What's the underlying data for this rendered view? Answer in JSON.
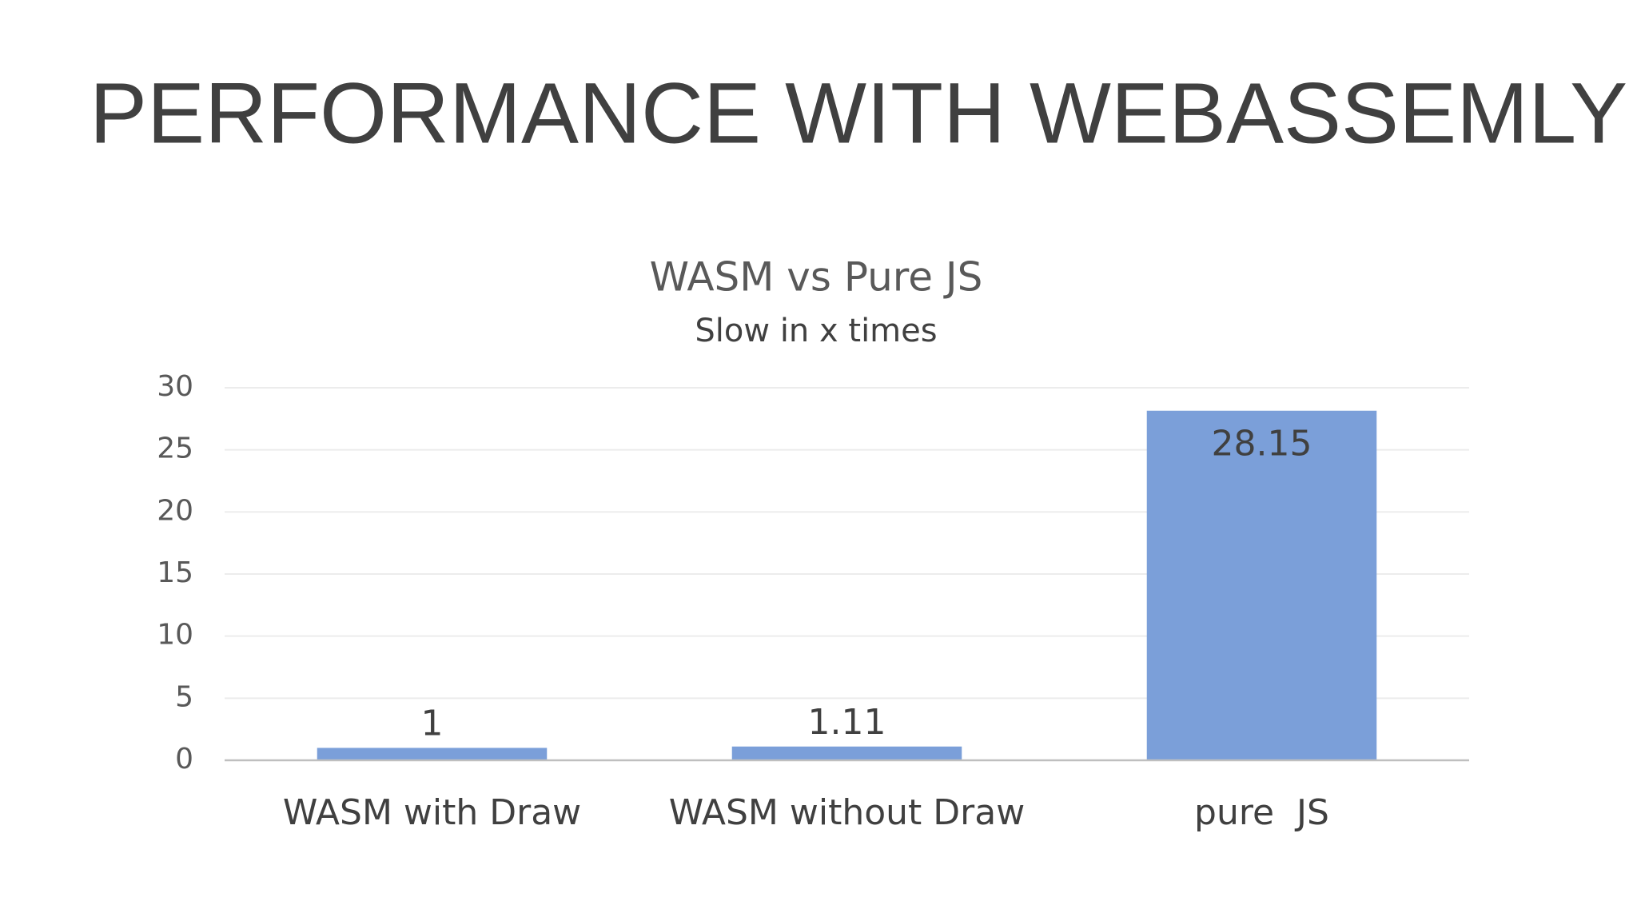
{
  "header": {
    "title": "PERFORMANCE WITH WEBASSEMLY"
  },
  "chart_data": {
    "type": "bar",
    "title": "WASM vs Pure JS",
    "subtitle": "Slow in x times",
    "categories": [
      "WASM with Draw",
      "WASM without Draw",
      "pure  JS"
    ],
    "values": [
      1,
      1.11,
      28.15
    ],
    "color": "#7b9fd9",
    "ylim": [
      0,
      30
    ],
    "yticks": [
      0,
      5,
      10,
      15,
      20,
      25,
      30
    ],
    "grid": true
  }
}
